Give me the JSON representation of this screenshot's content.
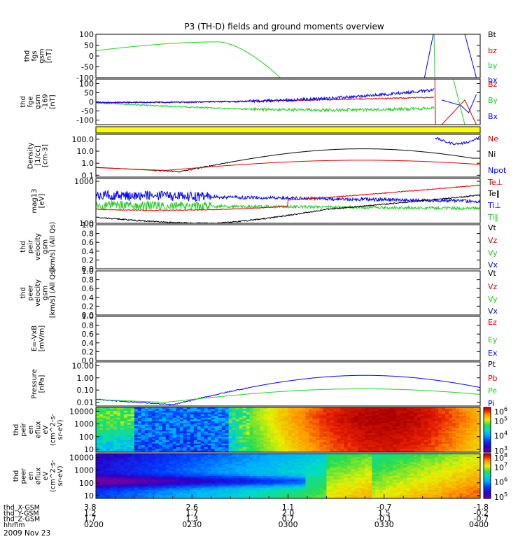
{
  "title": "P3 (TH-D) fields and ground moments overview",
  "colors": {
    "black": "#000000",
    "red": "#e00000",
    "green": "#20d020",
    "blue": "#0000ff",
    "yellow": "#ffff00"
  },
  "chart_data": [
    {
      "type": "line",
      "name": "fgs",
      "ylabel_lines": [
        "thd",
        "fgs",
        "gsm",
        "[nT]"
      ],
      "ylim": [
        -100,
        100
      ],
      "ticks": [
        "100",
        "50",
        "0",
        "-50",
        "-100"
      ],
      "legend": [
        {
          "label": "Bt",
          "color": "#000000"
        },
        {
          "label": "bz",
          "color": "#e00000"
        },
        {
          "label": "by",
          "color": "#20d020"
        },
        {
          "label": "bx",
          "color": "#0000ff"
        }
      ]
    },
    {
      "type": "line",
      "name": "fge",
      "ylabel_lines": [
        "thd",
        "fge",
        "gsm",
        "-169",
        "[nT]"
      ],
      "ylim": [
        -125,
        125
      ],
      "ticks": [
        "100",
        "50",
        "0",
        "-50",
        "-100"
      ],
      "legend": [
        {
          "label": "Bz",
          "color": "#e00000"
        },
        {
          "label": "By",
          "color": "#20d020"
        },
        {
          "label": "Bx",
          "color": "#0000ff"
        }
      ]
    },
    {
      "type": "line",
      "name": "density",
      "scale": "log",
      "ylabel_lines": [
        "Density",
        "[1/cc]",
        "[cm-3]"
      ],
      "ylim": [
        0.07,
        250
      ],
      "ticks": [
        "100.0",
        "10.0",
        "1.0",
        "0.1"
      ],
      "legend": [
        {
          "label": "Ne",
          "color": "#e00000"
        },
        {
          "label": "Ni",
          "color": "#000000"
        },
        {
          "label": "Npot",
          "color": "#0000ff"
        }
      ]
    },
    {
      "type": "line",
      "name": "temperature",
      "scale": "log",
      "ylabel_lines": [
        "mag13",
        "[eV]"
      ],
      "ylim": [
        100,
        1300
      ],
      "ticks": [
        "1000",
        "100"
      ],
      "legend": [
        {
          "label": "Te⊥",
          "color": "#e00000"
        },
        {
          "label": "Te‖",
          "color": "#000000"
        },
        {
          "label": "Ti⊥",
          "color": "#0000ff"
        },
        {
          "label": "Ti‖",
          "color": "#20d020"
        }
      ]
    },
    {
      "type": "line",
      "name": "ion_velocity",
      "ylabel_lines": [
        "thd",
        "peir",
        "velocity",
        "gsm",
        "[km/s] (All Qs)"
      ],
      "ylim": [
        0,
        1
      ],
      "ticks": [
        "1.0",
        "0.8",
        "0.6",
        "0.4",
        "0.2",
        "0.0"
      ],
      "legend": [
        {
          "label": "Vt",
          "color": "#000000"
        },
        {
          "label": "Vz",
          "color": "#e00000"
        },
        {
          "label": "Vy",
          "color": "#20d020"
        },
        {
          "label": "Vx",
          "color": "#0000ff"
        }
      ]
    },
    {
      "type": "line",
      "name": "electron_velocity",
      "ylabel_lines": [
        "thd",
        "peer",
        "velocity",
        "gsm",
        "[km/s] (All Qs)"
      ],
      "ylim": [
        0,
        1
      ],
      "ticks": [
        "1.0",
        "0.8",
        "0.6",
        "0.4",
        "0.2",
        "0.0"
      ],
      "legend": [
        {
          "label": "Vt",
          "color": "#000000"
        },
        {
          "label": "Vz",
          "color": "#e00000"
        },
        {
          "label": "Vy",
          "color": "#20d020"
        },
        {
          "label": "Vx",
          "color": "#0000ff"
        }
      ]
    },
    {
      "type": "line",
      "name": "efield",
      "ylabel_lines": [
        "E=-VxB",
        "[mV/m]"
      ],
      "ylim": [
        0,
        1
      ],
      "ticks": [
        "1.0",
        "0.8",
        "0.6",
        "0.4",
        "0.2",
        "0.0"
      ],
      "legend": [
        {
          "label": "Ez",
          "color": "#e00000"
        },
        {
          "label": "Ey",
          "color": "#20d020"
        },
        {
          "label": "Ex",
          "color": "#0000ff"
        }
      ]
    },
    {
      "type": "line",
      "name": "pressure",
      "scale": "log",
      "ylabel_lines": [
        "Pressure",
        "[nPa]"
      ],
      "ylim": [
        0.005,
        20
      ],
      "ticks": [
        "10.00",
        "1.00",
        "0.10",
        "0.01"
      ],
      "legend": [
        {
          "label": "Pt",
          "color": "#000000"
        },
        {
          "label": "Pb",
          "color": "#e00000"
        },
        {
          "label": "Pe",
          "color": "#20d020"
        },
        {
          "label": "Pi",
          "color": "#0000ff"
        }
      ]
    },
    {
      "type": "heatmap",
      "name": "ion_spectrogram",
      "scale": "log",
      "ylabel_lines": [
        "thd",
        "peir",
        "en",
        "eflux",
        "eV",
        "(cm^2-s-",
        "sr-eV)"
      ],
      "ylim": [
        6,
        20000
      ],
      "ticks": [
        "10000",
        "1000",
        "100",
        "10"
      ],
      "zlim": [
        1000,
        1000000
      ],
      "colorbar_ticks": [
        {
          "base": "10",
          "exp": "6",
          "value": 1000000
        },
        {
          "base": "10",
          "exp": "5",
          "value": 100000
        },
        {
          "base": "10",
          "exp": "4",
          "value": 10000
        },
        {
          "base": "10",
          "exp": "3",
          "value": 1000
        }
      ]
    },
    {
      "type": "heatmap",
      "name": "electron_spectrogram",
      "scale": "log",
      "ylabel_lines": [
        "thd",
        "peer",
        "en",
        "eflux",
        "eV",
        "(cm^2-s-",
        "sr-eV)"
      ],
      "ylim": [
        6,
        20000
      ],
      "ticks": [
        "10000",
        "1000",
        "100",
        "10"
      ],
      "zlim": [
        100000,
        100000000
      ],
      "colorbar_ticks": [
        {
          "base": "10",
          "exp": "8",
          "value": 100000000
        },
        {
          "base": "10",
          "exp": "7",
          "value": 10000000
        },
        {
          "base": "10",
          "exp": "6",
          "value": 1000000
        },
        {
          "base": "10",
          "exp": "5",
          "value": 100000
        }
      ]
    }
  ],
  "x_axis": {
    "rows": [
      {
        "label": "thd_X-GSM",
        "values": [
          "3.8",
          "2.6",
          "1.1",
          "-0.7",
          "-1.8"
        ]
      },
      {
        "label": "thd_Y-GSM",
        "values": [
          "1.2",
          "1.7",
          "2.0",
          "1.5",
          "-0.2"
        ]
      },
      {
        "label": "thd_Z-GSM",
        "values": [
          "1.7",
          "1.3",
          "0.7",
          "-0.1",
          "-0.7"
        ]
      },
      {
        "label": "hhmm",
        "values": [
          "0200",
          "0230",
          "0300",
          "0330",
          "0400"
        ]
      }
    ],
    "date": "2009 Nov 23"
  }
}
